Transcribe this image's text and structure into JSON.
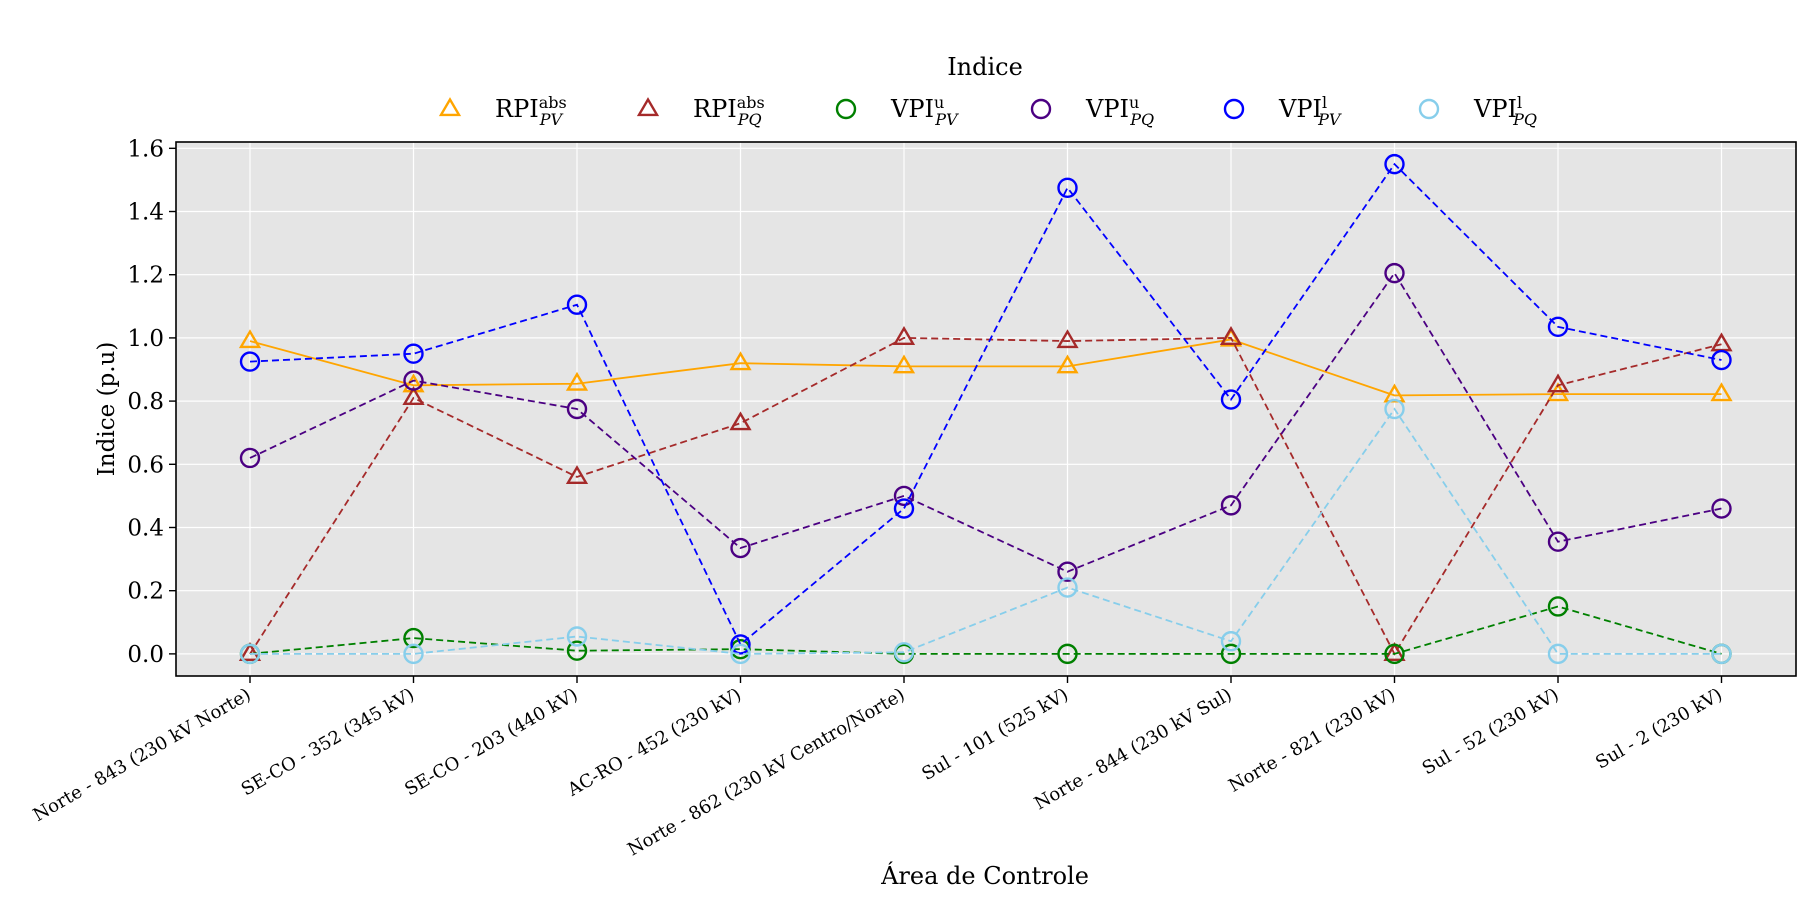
{
  "chart_data": {
    "type": "line",
    "legend_title": "Indice",
    "legend_position": "top",
    "xlabel": "Área de Controle",
    "ylabel": "Indice (p.u)",
    "ylim": [
      -0.07,
      1.62
    ],
    "yticks": [
      0.0,
      0.2,
      0.4,
      0.6,
      0.8,
      1.0,
      1.2,
      1.4,
      1.6
    ],
    "ytick_labels": [
      "0.0",
      "0.2",
      "0.4",
      "0.6",
      "0.8",
      "1.0",
      "1.2",
      "1.4",
      "1.6"
    ],
    "grid": true,
    "background": "#e5e5e5",
    "categories": [
      "Norte - 843 (230 kV Norte)",
      "SE-CO - 352 (345 kV)",
      "SE-CO - 203 (440 kV)",
      "AC-RO - 452 (230 kV)",
      "Norte - 862 (230 kV Centro/Norte)",
      "Sul - 101 (525 kV)",
      "Norte - 844 (230 kV Sul)",
      "Norte - 821 (230 kV)",
      "Sul - 52 (230 kV)",
      "Sul - 2 (230 kV)"
    ],
    "series": [
      {
        "base": "RPI",
        "sup": "abs",
        "sub": "PV",
        "color": "#ffa500",
        "marker": "triangle",
        "dash": false,
        "values": [
          0.99,
          0.85,
          0.855,
          0.92,
          0.91,
          0.91,
          0.995,
          0.818,
          0.822,
          0.822
        ]
      },
      {
        "base": "RPI",
        "sup": "abs",
        "sub": "PQ",
        "color": "#a52a2a",
        "marker": "triangle",
        "dash": true,
        "values": [
          0.0,
          0.81,
          0.56,
          0.73,
          1.0,
          0.99,
          1.0,
          0.0,
          0.85,
          0.98
        ]
      },
      {
        "base": "VPI",
        "sup": "u",
        "sub": "PV",
        "color": "#008000",
        "marker": "circle",
        "dash": true,
        "values": [
          0.0,
          0.05,
          0.01,
          0.015,
          0.0,
          0.0,
          0.0,
          0.0,
          0.15,
          0.0
        ]
      },
      {
        "base": "VPI",
        "sup": "u",
        "sub": "PQ",
        "color": "#4b0082",
        "marker": "circle",
        "dash": true,
        "values": [
          0.62,
          0.865,
          0.775,
          0.335,
          0.5,
          0.26,
          0.47,
          1.205,
          0.355,
          0.46
        ]
      },
      {
        "base": "VPI",
        "sup": "l",
        "sub": "PV",
        "color": "#0000ff",
        "marker": "circle",
        "dash": true,
        "values": [
          0.925,
          0.95,
          1.105,
          0.03,
          0.46,
          1.475,
          0.805,
          1.55,
          1.035,
          0.93
        ]
      },
      {
        "base": "VPI",
        "sup": "l",
        "sub": "PQ",
        "color": "#87ceeb",
        "marker": "circle",
        "dash": true,
        "values": [
          0.0,
          0.0,
          0.055,
          0.0,
          0.005,
          0.21,
          0.04,
          0.775,
          0.0,
          0.0
        ]
      }
    ]
  }
}
